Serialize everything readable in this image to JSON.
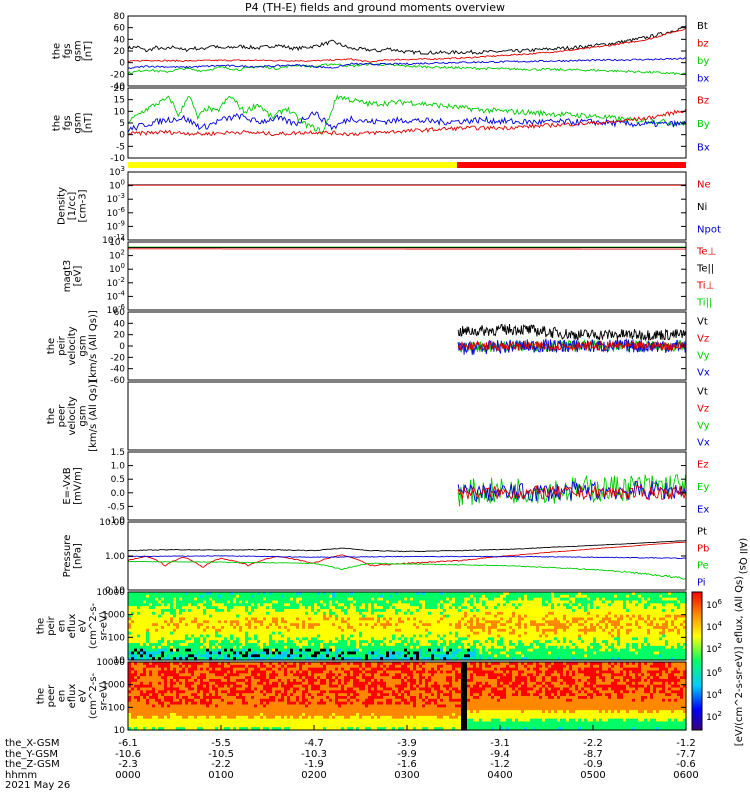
{
  "title": "P4 (TH-E) fields and ground moments overview",
  "chart_data": [
    {
      "id": "fgs_gsm",
      "type": "line",
      "ylabel": [
        "the",
        "fgs",
        "gsm",
        "[nT]"
      ],
      "ylim": [
        -40,
        80
      ],
      "yticks": [
        "80",
        "60",
        "40",
        "20",
        "0",
        "-20",
        "-40"
      ],
      "legend": [
        {
          "name": "Bt",
          "color": "#000000"
        },
        {
          "name": "bz",
          "color": "#dd0000"
        },
        {
          "name": "by",
          "color": "#00cc00"
        },
        {
          "name": "bx",
          "color": "#0000dd"
        }
      ],
      "series": [
        {
          "name": "Bt",
          "color": "#000000",
          "x": [
            0,
            10,
            20,
            30,
            40,
            50,
            60,
            70,
            80,
            90,
            100,
            120,
            140,
            160,
            180,
            200,
            220,
            240,
            260,
            270,
            280,
            300,
            330,
            360,
            380,
            400,
            420,
            440,
            460,
            480,
            500,
            520,
            540,
            560,
            580,
            600
          ],
          "y": [
            25,
            27,
            20,
            26,
            22,
            28,
            21,
            25,
            23,
            30,
            24,
            28,
            25,
            30,
            24,
            28,
            36,
            24,
            22,
            20,
            24,
            18,
            17,
            18,
            18,
            19,
            20,
            22,
            24,
            26,
            29,
            33,
            38,
            44,
            52,
            62
          ],
          "noise": 3
        },
        {
          "name": "bz",
          "color": "#dd0000",
          "x": [
            0,
            20,
            60,
            100,
            140,
            200,
            240,
            260,
            280,
            320,
            360,
            400,
            440,
            480,
            520,
            560,
            580,
            600
          ],
          "y": [
            2,
            4,
            3,
            4,
            4,
            3,
            6,
            1,
            5,
            6,
            8,
            12,
            16,
            22,
            30,
            40,
            50,
            58
          ],
          "noise": 1.2
        },
        {
          "name": "by",
          "color": "#00cc00",
          "x": [
            0,
            20,
            40,
            60,
            80,
            100,
            120,
            140,
            160,
            180,
            200,
            220,
            240,
            260,
            280,
            300,
            340,
            380,
            420,
            460,
            500,
            540,
            580,
            600
          ],
          "y": [
            -18,
            -12,
            -16,
            -10,
            -14,
            -8,
            -12,
            -6,
            -10,
            -4,
            -7,
            -2,
            -6,
            -2,
            -4,
            -6,
            -8,
            -10,
            -11,
            -12,
            -13,
            -15,
            -18,
            -20
          ],
          "noise": 2
        },
        {
          "name": "bx",
          "color": "#0000dd",
          "x": [
            0,
            20,
            60,
            100,
            140,
            180,
            220,
            240,
            260,
            300,
            340,
            380,
            420,
            460,
            500,
            540,
            580,
            600
          ],
          "y": [
            -10,
            -6,
            -8,
            -5,
            -7,
            -4,
            -9,
            -2,
            -3,
            -2,
            0,
            1,
            2,
            3,
            4,
            5,
            6,
            7
          ],
          "noise": 1.5
        }
      ]
    },
    {
      "id": "fgs_gsm_zoom",
      "type": "line",
      "ylabel": [
        "the",
        "fgs",
        "gsm",
        "[nT]"
      ],
      "ylim": [
        -15,
        20
      ],
      "yticks": [
        "20",
        "15",
        "10",
        "5",
        "0",
        "-5",
        "-10"
      ],
      "legend": [
        {
          "name": "Bz",
          "color": "#dd0000"
        },
        {
          "name": "By",
          "color": "#00cc00"
        },
        {
          "name": "Bx",
          "color": "#0000dd"
        }
      ],
      "series": [
        {
          "name": "By",
          "color": "#00cc00",
          "x": [
            0,
            15,
            30,
            45,
            55,
            65,
            75,
            85,
            95,
            110,
            125,
            140,
            155,
            170,
            190,
            210,
            225,
            240,
            260,
            300,
            340,
            380,
            420,
            460,
            500,
            540,
            580,
            600
          ],
          "y": [
            3,
            8,
            12,
            15,
            6,
            17,
            5,
            10,
            8,
            16,
            8,
            12,
            5,
            10,
            2,
            -2,
            16,
            14,
            12,
            13,
            11,
            9,
            8,
            7,
            6,
            4,
            3,
            2
          ],
          "noise": 1.4
        },
        {
          "name": "Bx",
          "color": "#0000dd",
          "x": [
            0,
            20,
            40,
            60,
            80,
            100,
            120,
            140,
            160,
            180,
            200,
            220,
            240,
            260,
            300,
            340,
            380,
            420,
            460,
            500,
            540,
            580,
            600
          ],
          "y": [
            -1,
            2,
            4,
            5,
            0,
            4,
            6,
            3,
            5,
            2,
            8,
            0,
            5,
            3,
            4,
            3,
            4,
            3,
            3,
            3,
            2,
            2,
            2
          ],
          "noise": 1.6
        },
        {
          "name": "Bz",
          "color": "#dd0000",
          "x": [
            0,
            40,
            80,
            120,
            160,
            200,
            240,
            280,
            320,
            360,
            400,
            440,
            480,
            520,
            560,
            580,
            600
          ],
          "y": [
            -3,
            -2,
            -3,
            -2,
            -3,
            -2,
            -3,
            -2,
            -1,
            0,
            0,
            1,
            2,
            3,
            5,
            7,
            9
          ],
          "noise": 1.0
        }
      ]
    },
    {
      "id": "density",
      "type": "line",
      "ylabel": [
        "Density",
        "[1/cc]",
        "[cm-3]"
      ],
      "log": true,
      "ylim": [
        1e-12,
        1000
      ],
      "yticks": [
        "10^3",
        "10^0",
        "10^-3",
        "10^-6",
        "10^-9",
        "10^-12"
      ],
      "legend": [
        {
          "name": "Ne",
          "color": "#dd0000"
        },
        {
          "name": "Ni",
          "color": "#000000"
        },
        {
          "name": "Npot",
          "color": "#0000dd"
        }
      ],
      "series": [
        {
          "name": "Ni",
          "color": "#000000",
          "x": [
            0,
            600
          ],
          "y": [
            1.5,
            1.5
          ],
          "noise": 0
        },
        {
          "name": "Ne",
          "color": "#dd0000",
          "x": [
            0,
            600
          ],
          "y": [
            1.2,
            1.2
          ],
          "noise": 0
        }
      ]
    },
    {
      "id": "magt3",
      "type": "line",
      "ylabel": [
        "magt3",
        "[eV]"
      ],
      "log": true,
      "ylim": [
        1e-06,
        10000.0
      ],
      "yticks": [
        "10^4",
        "10^2",
        "10^0",
        "10^-2",
        "10^-4",
        "10^-6"
      ],
      "legend": [
        {
          "name": "Te⊥",
          "color": "#dd0000"
        },
        {
          "name": "Te||",
          "color": "#000000"
        },
        {
          "name": "Ti⊥",
          "color": "#dd0000"
        },
        {
          "name": "Ti||",
          "color": "#00cc00"
        }
      ],
      "series": [
        {
          "name": "Ti||",
          "color": "#00cc00",
          "x": [
            0,
            600
          ],
          "y": [
            1800,
            1800
          ],
          "noise": 0
        },
        {
          "name": "Te||",
          "color": "#000000",
          "x": [
            0,
            600
          ],
          "y": [
            1500,
            1500
          ],
          "noise": 0
        },
        {
          "name": "Te⊥",
          "color": "#dd0000",
          "x": [
            0,
            600
          ],
          "y": [
            1000,
            900
          ],
          "noise": 0
        }
      ]
    },
    {
      "id": "peir_velocity",
      "type": "line",
      "ylabel": [
        "the",
        "peir",
        "velocity",
        "gsm",
        "[km/s (All Qs)]"
      ],
      "ylim": [
        -60,
        60
      ],
      "yticks": [
        "60",
        "40",
        "20",
        "0",
        "-20",
        "-40",
        "-60"
      ],
      "legend": [
        {
          "name": "Vt",
          "color": "#000000"
        },
        {
          "name": "Vz",
          "color": "#dd0000"
        },
        {
          "name": "Vy",
          "color": "#00cc00"
        },
        {
          "name": "Vx",
          "color": "#0000dd"
        }
      ],
      "series": [
        {
          "name": "Vt",
          "color": "#000000",
          "x": [
            355,
            420,
            480,
            600
          ],
          "y": [
            25,
            30,
            20,
            20
          ],
          "noise": 10
        },
        {
          "name": "Vy",
          "color": "#00cc00",
          "x": [
            355,
            420,
            480,
            600
          ],
          "y": [
            -2,
            0,
            0,
            0
          ],
          "noise": 10
        },
        {
          "name": "Vx",
          "color": "#0000dd",
          "x": [
            355,
            420,
            480,
            600
          ],
          "y": [
            -5,
            0,
            0,
            0
          ],
          "noise": 12
        },
        {
          "name": "Vz",
          "color": "#dd0000",
          "x": [
            355,
            420,
            480,
            600
          ],
          "y": [
            0,
            0,
            0,
            0
          ],
          "noise": 8
        }
      ]
    },
    {
      "id": "peer_velocity",
      "type": "line",
      "ylabel": [
        "the",
        "peer",
        "velocity",
        "gsm",
        "[km/s (All Qs)]"
      ],
      "ylim": [
        -60,
        60
      ],
      "yticks": [],
      "legend": [
        {
          "name": "Vt",
          "color": "#000000"
        },
        {
          "name": "Vz",
          "color": "#dd0000"
        },
        {
          "name": "Vy",
          "color": "#00cc00"
        },
        {
          "name": "Vx",
          "color": "#0000dd"
        }
      ],
      "series": []
    },
    {
      "id": "e_vxb",
      "type": "line",
      "ylabel": [
        "E=-VxB",
        "[mV/m]"
      ],
      "ylim": [
        -1.0,
        1.5
      ],
      "yticks": [
        "1.5",
        "1.0",
        "0.5",
        "0.0",
        "-0.5",
        "-1.0"
      ],
      "legend": [
        {
          "name": "Ez",
          "color": "#dd0000"
        },
        {
          "name": "Ey",
          "color": "#00cc00"
        },
        {
          "name": "Ex",
          "color": "#0000dd"
        }
      ],
      "series": [
        {
          "name": "Ey",
          "color": "#00cc00",
          "x": [
            355,
            420,
            480,
            600
          ],
          "y": [
            0,
            0.1,
            0.1,
            0.3
          ],
          "noise": 0.5
        },
        {
          "name": "Ex",
          "color": "#0000dd",
          "x": [
            355,
            420,
            480,
            600
          ],
          "y": [
            0,
            0,
            0.05,
            0.1
          ],
          "noise": 0.35
        },
        {
          "name": "Ez",
          "color": "#dd0000",
          "x": [
            355,
            420,
            480,
            600
          ],
          "y": [
            0,
            0,
            0,
            0
          ],
          "noise": 0.25
        }
      ]
    },
    {
      "id": "pressure",
      "type": "line",
      "ylabel": [
        "Pressure",
        "[nPa]"
      ],
      "log": true,
      "ylim": [
        0.01,
        10
      ],
      "yticks": [
        "10.00",
        "1.00",
        "0.10"
      ],
      "legend": [
        {
          "name": "Pt",
          "color": "#000000"
        },
        {
          "name": "Pb",
          "color": "#dd0000"
        },
        {
          "name": "Pe",
          "color": "#00cc00"
        },
        {
          "name": "Pi",
          "color": "#0000dd"
        }
      ],
      "right_label": "(All Qs)",
      "series": [
        {
          "name": "Pt",
          "color": "#000000",
          "x": [
            0,
            50,
            100,
            150,
            200,
            230,
            260,
            300,
            360,
            420,
            480,
            540,
            600
          ],
          "y": [
            0.55,
            0.6,
            0.58,
            0.6,
            0.55,
            0.7,
            0.55,
            0.5,
            0.55,
            0.65,
            0.85,
            1.1,
            1.5
          ],
          "noise": 0.02
        },
        {
          "name": "Pb",
          "color": "#dd0000",
          "x": [
            0,
            20,
            40,
            60,
            80,
            100,
            130,
            160,
            200,
            230,
            260,
            300,
            360,
            420,
            480,
            540,
            600
          ],
          "y": [
            0.2,
            0.3,
            0.12,
            0.28,
            0.1,
            0.25,
            0.12,
            0.3,
            0.15,
            0.35,
            0.12,
            0.15,
            0.2,
            0.35,
            0.55,
            0.85,
            1.3
          ],
          "noise": 0.01
        },
        {
          "name": "Pi",
          "color": "#0000dd",
          "x": [
            0,
            100,
            200,
            300,
            400,
            500,
            600
          ],
          "y": [
            0.3,
            0.32,
            0.28,
            0.3,
            0.3,
            0.28,
            0.25
          ],
          "noise": 0.01
        },
        {
          "name": "Pe",
          "color": "#00cc00",
          "x": [
            0,
            100,
            200,
            230,
            260,
            300,
            400,
            500,
            560,
            600
          ],
          "y": [
            0.18,
            0.17,
            0.15,
            0.08,
            0.15,
            0.14,
            0.12,
            0.08,
            0.05,
            0.03
          ],
          "noise": 0.005
        }
      ]
    },
    {
      "id": "peir_eflux",
      "type": "heatmap",
      "ylabel": [
        "the",
        "peir",
        "en",
        "eflux",
        "eV",
        "(cm^2-s-",
        "sr-eV)"
      ],
      "log": true,
      "ylim": [
        5,
        30000
      ],
      "yticks": [
        "10000",
        "1000",
        "100",
        "10"
      ]
    },
    {
      "id": "peer_eflux",
      "type": "heatmap",
      "ylabel": [
        "the",
        "peer",
        "en",
        "eflux",
        "eV",
        "(cm^2-s-",
        "sr-eV)"
      ],
      "log": true,
      "ylim": [
        5,
        30000
      ],
      "yticks": [
        "10000",
        "1000",
        "100",
        "10"
      ]
    }
  ],
  "colorbar": {
    "ticks_top": [
      "10^6",
      "10^4",
      "10^2"
    ],
    "ticks_bottom": [
      "10^6",
      "10^4",
      "10^2"
    ],
    "label": "[eV/(cm^2-s-sr-eV)] eflux, (All Qs)"
  },
  "x_axis": {
    "rows": [
      {
        "label": "the_X-GSM",
        "values": [
          "-6.1",
          "-5.5",
          "-4.7",
          "-3.9",
          "-3.1",
          "-2.2",
          "-1.2"
        ]
      },
      {
        "label": "the_Y-GSM",
        "values": [
          "-10.6",
          "-10.5",
          "-10.3",
          "-9.9",
          "-9.4",
          "-8.7",
          "-7.7"
        ]
      },
      {
        "label": "the_Z-GSM",
        "values": [
          "-2.3",
          "-2.2",
          "-1.9",
          "-1.6",
          "-1.2",
          "-0.9",
          "-0.6"
        ]
      },
      {
        "label": "hhmm",
        "values": [
          "0000",
          "0100",
          "0200",
          "0300",
          "0400",
          "0500",
          "0600"
        ]
      }
    ],
    "date": "2021 May 26"
  },
  "colors": {
    "yellow_bar": "#ffff00",
    "red_bar": "#ff0000"
  }
}
